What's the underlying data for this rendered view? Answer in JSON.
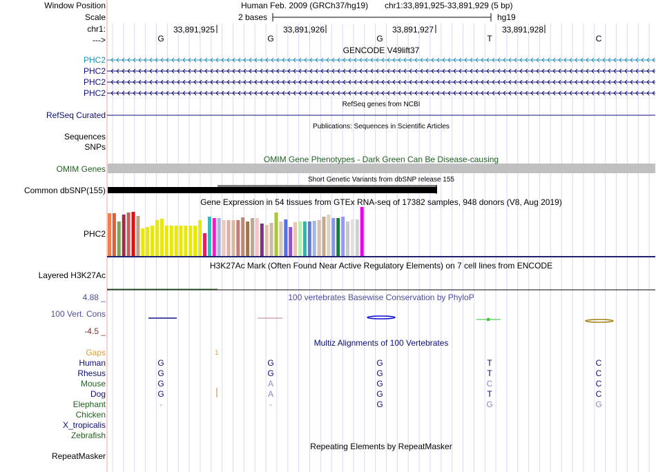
{
  "header": {
    "window_position_label": "Window Position",
    "scale_label": "Scale",
    "chrom_label": "chr1:",
    "strand_label": "--->",
    "assembly_title": "Human Feb. 2009 (GRCh37/hg19)",
    "position_text": "chr1:33,891,925-33,891,929 (5 bp)",
    "scale_text": "2 bases",
    "db_text": "hg19",
    "coordinates": [
      "33,891,925",
      "33,891,926",
      "33,891,927",
      "33,891,928"
    ],
    "bases": [
      "G",
      "G",
      "G",
      "T",
      "C"
    ]
  },
  "tracks": {
    "gencode": {
      "title": "GENCODE V49lift37",
      "genes": [
        "PHC2",
        "PHC2",
        "PHC2",
        "PHC2"
      ],
      "colors": [
        "#1a8fb8",
        "#0c0c78",
        "#0c0c78",
        "#0c0c78"
      ]
    },
    "refseq": {
      "title": "RefSeq genes from NCBI",
      "label": "RefSeq Curated",
      "color": "#0c0c78"
    },
    "publications": {
      "title": "Publications: Sequences in Scientific Articles",
      "label1": "Sequences",
      "label2": "SNPs"
    },
    "omim": {
      "title": "OMIM Gene Phenotypes - Dark Green Can Be Disease-causing",
      "label": "OMIM Genes",
      "color": "#206020"
    },
    "dbsnp": {
      "title": "Short Genetic Variants from dbSNP release 155",
      "label": "Common dbSNP(155)"
    },
    "gtex": {
      "title": "Gene Expression in 54 tissues from GTEx RNA-seq of 17382 samples, 948 donors (V8, Aug 2019)",
      "label": "PHC2",
      "bar_levels": [
        0.62,
        0.62,
        0.5,
        0.6,
        0.63,
        0.64,
        0.58,
        0.4,
        0.42,
        0.44,
        0.52,
        0.54,
        0.44,
        0.44,
        0.44,
        0.44,
        0.44,
        0.44,
        0.44,
        0.52,
        0.33,
        0.57,
        0.55,
        0.55,
        0.52,
        0.52,
        0.52,
        0.52,
        0.56,
        0.5,
        0.55,
        0.55,
        0.47,
        0.45,
        0.48,
        0.63,
        0.5,
        0.53,
        0.42,
        0.49,
        0.5,
        0.5,
        0.5,
        0.51,
        0.52,
        0.57,
        0.6,
        0.55,
        0.55,
        0.57,
        0.5,
        0.53,
        0.53,
        0.71
      ],
      "bar_colors": [
        "#f08050",
        "#e06030",
        "#80a060",
        "#9c3040",
        "#c06060",
        "#e01010",
        "#c0a080",
        "#e8e800",
        "#e8e800",
        "#e8e800",
        "#e8e800",
        "#e8e800",
        "#e8e800",
        "#e8e800",
        "#e8e800",
        "#e8e800",
        "#e8e800",
        "#e8e800",
        "#e8e800",
        "#e8e800",
        "#e02060",
        "#18c8c8",
        "#f020c0",
        "#a8b8e0",
        "#f0c8c0",
        "#d8b0a8",
        "#d8b8a0",
        "#c08078",
        "#c08870",
        "#9c7850",
        "#c0a890",
        "#f0c8c8",
        "#803080",
        "#e0c0a8",
        "#d0b8a8",
        "#a8c830",
        "#d8c8b8",
        "#5070f0",
        "#9050d0",
        "#f0c0b0",
        "#b8f0b0",
        "#28b8a8",
        "#6878c8",
        "#a0b8e0",
        "#d8c0b0",
        "#c8a888",
        "#e0d0c0",
        "#8898e0",
        "#108040",
        "#9898f0",
        "#c8c8c8",
        "#e0e0e0",
        "#d0d0d0",
        "#f000f0"
      ]
    },
    "h3k27ac": {
      "title": "H3K27Ac Mark (Often Found Near Active Regulatory Elements) on 7 cell lines from ENCODE",
      "label": "Layered H3K27Ac"
    },
    "phylop": {
      "title": "100 vertebrates Basewise Conservation by PhyloP",
      "label": "100 Vert. Cons",
      "max": "4.88 _",
      "min": "-4.5 _",
      "color": "#4c4ca0"
    },
    "multiz": {
      "title": "Multiz Alignments of 100 Vertebrates",
      "gaps_label": "Gaps",
      "gaps_mark": "1",
      "species": [
        {
          "name": "Human",
          "color": "#0c0c78",
          "bases": [
            "G",
            "G",
            "G",
            "T",
            "C"
          ]
        },
        {
          "name": "Rhesus",
          "color": "#0c0c78",
          "bases": [
            "G",
            "G",
            "G",
            "T",
            "C"
          ]
        },
        {
          "name": "Mouse",
          "color": "#206020",
          "bases": [
            "G",
            "A",
            "G",
            "C",
            "C"
          ]
        },
        {
          "name": "Dog",
          "color": "#0c0c78",
          "bases": [
            "G",
            "A",
            "G",
            "T",
            "C"
          ]
        },
        {
          "name": "Elephant",
          "color": "#206020",
          "bases": [
            "-",
            "-",
            "G",
            "G",
            "G"
          ]
        },
        {
          "name": "Chicken",
          "color": "#206020",
          "bases": [
            "",
            "",
            "",
            "",
            ""
          ]
        },
        {
          "name": "X_tropicalis",
          "color": "#0c0c78",
          "bases": [
            "",
            "",
            "",
            "",
            ""
          ]
        },
        {
          "name": "Zebrafish",
          "color": "#206020",
          "bases": [
            "",
            "",
            "",
            "",
            ""
          ]
        }
      ],
      "base_colors": [
        [
          "#0c0c78",
          "#0c0c78",
          "#0c0c78",
          "#0c0c78",
          "#0c0c78"
        ],
        [
          "#0c0c78",
          "#0c0c78",
          "#0c0c78",
          "#0c0c78",
          "#0c0c78"
        ],
        [
          "#0c0c78",
          "#8888c0",
          "#0c0c78",
          "#8888c0",
          "#0c0c78"
        ],
        [
          "#0c0c78",
          "#8888c0",
          "#0c0c78",
          "#0c0c78",
          "#0c0c78"
        ],
        [
          "#8888c0",
          "#8888c0",
          "#0c0c78",
          "#8888c0",
          "#8888c0"
        ],
        [
          "",
          "",
          "",
          "",
          ""
        ],
        [
          "",
          "",
          "",
          "",
          ""
        ],
        [
          "",
          "",
          "",
          "",
          ""
        ]
      ]
    },
    "repeatmasker": {
      "title": "Repeating Elements by RepeatMasker",
      "label": "RepeatMasker"
    }
  }
}
